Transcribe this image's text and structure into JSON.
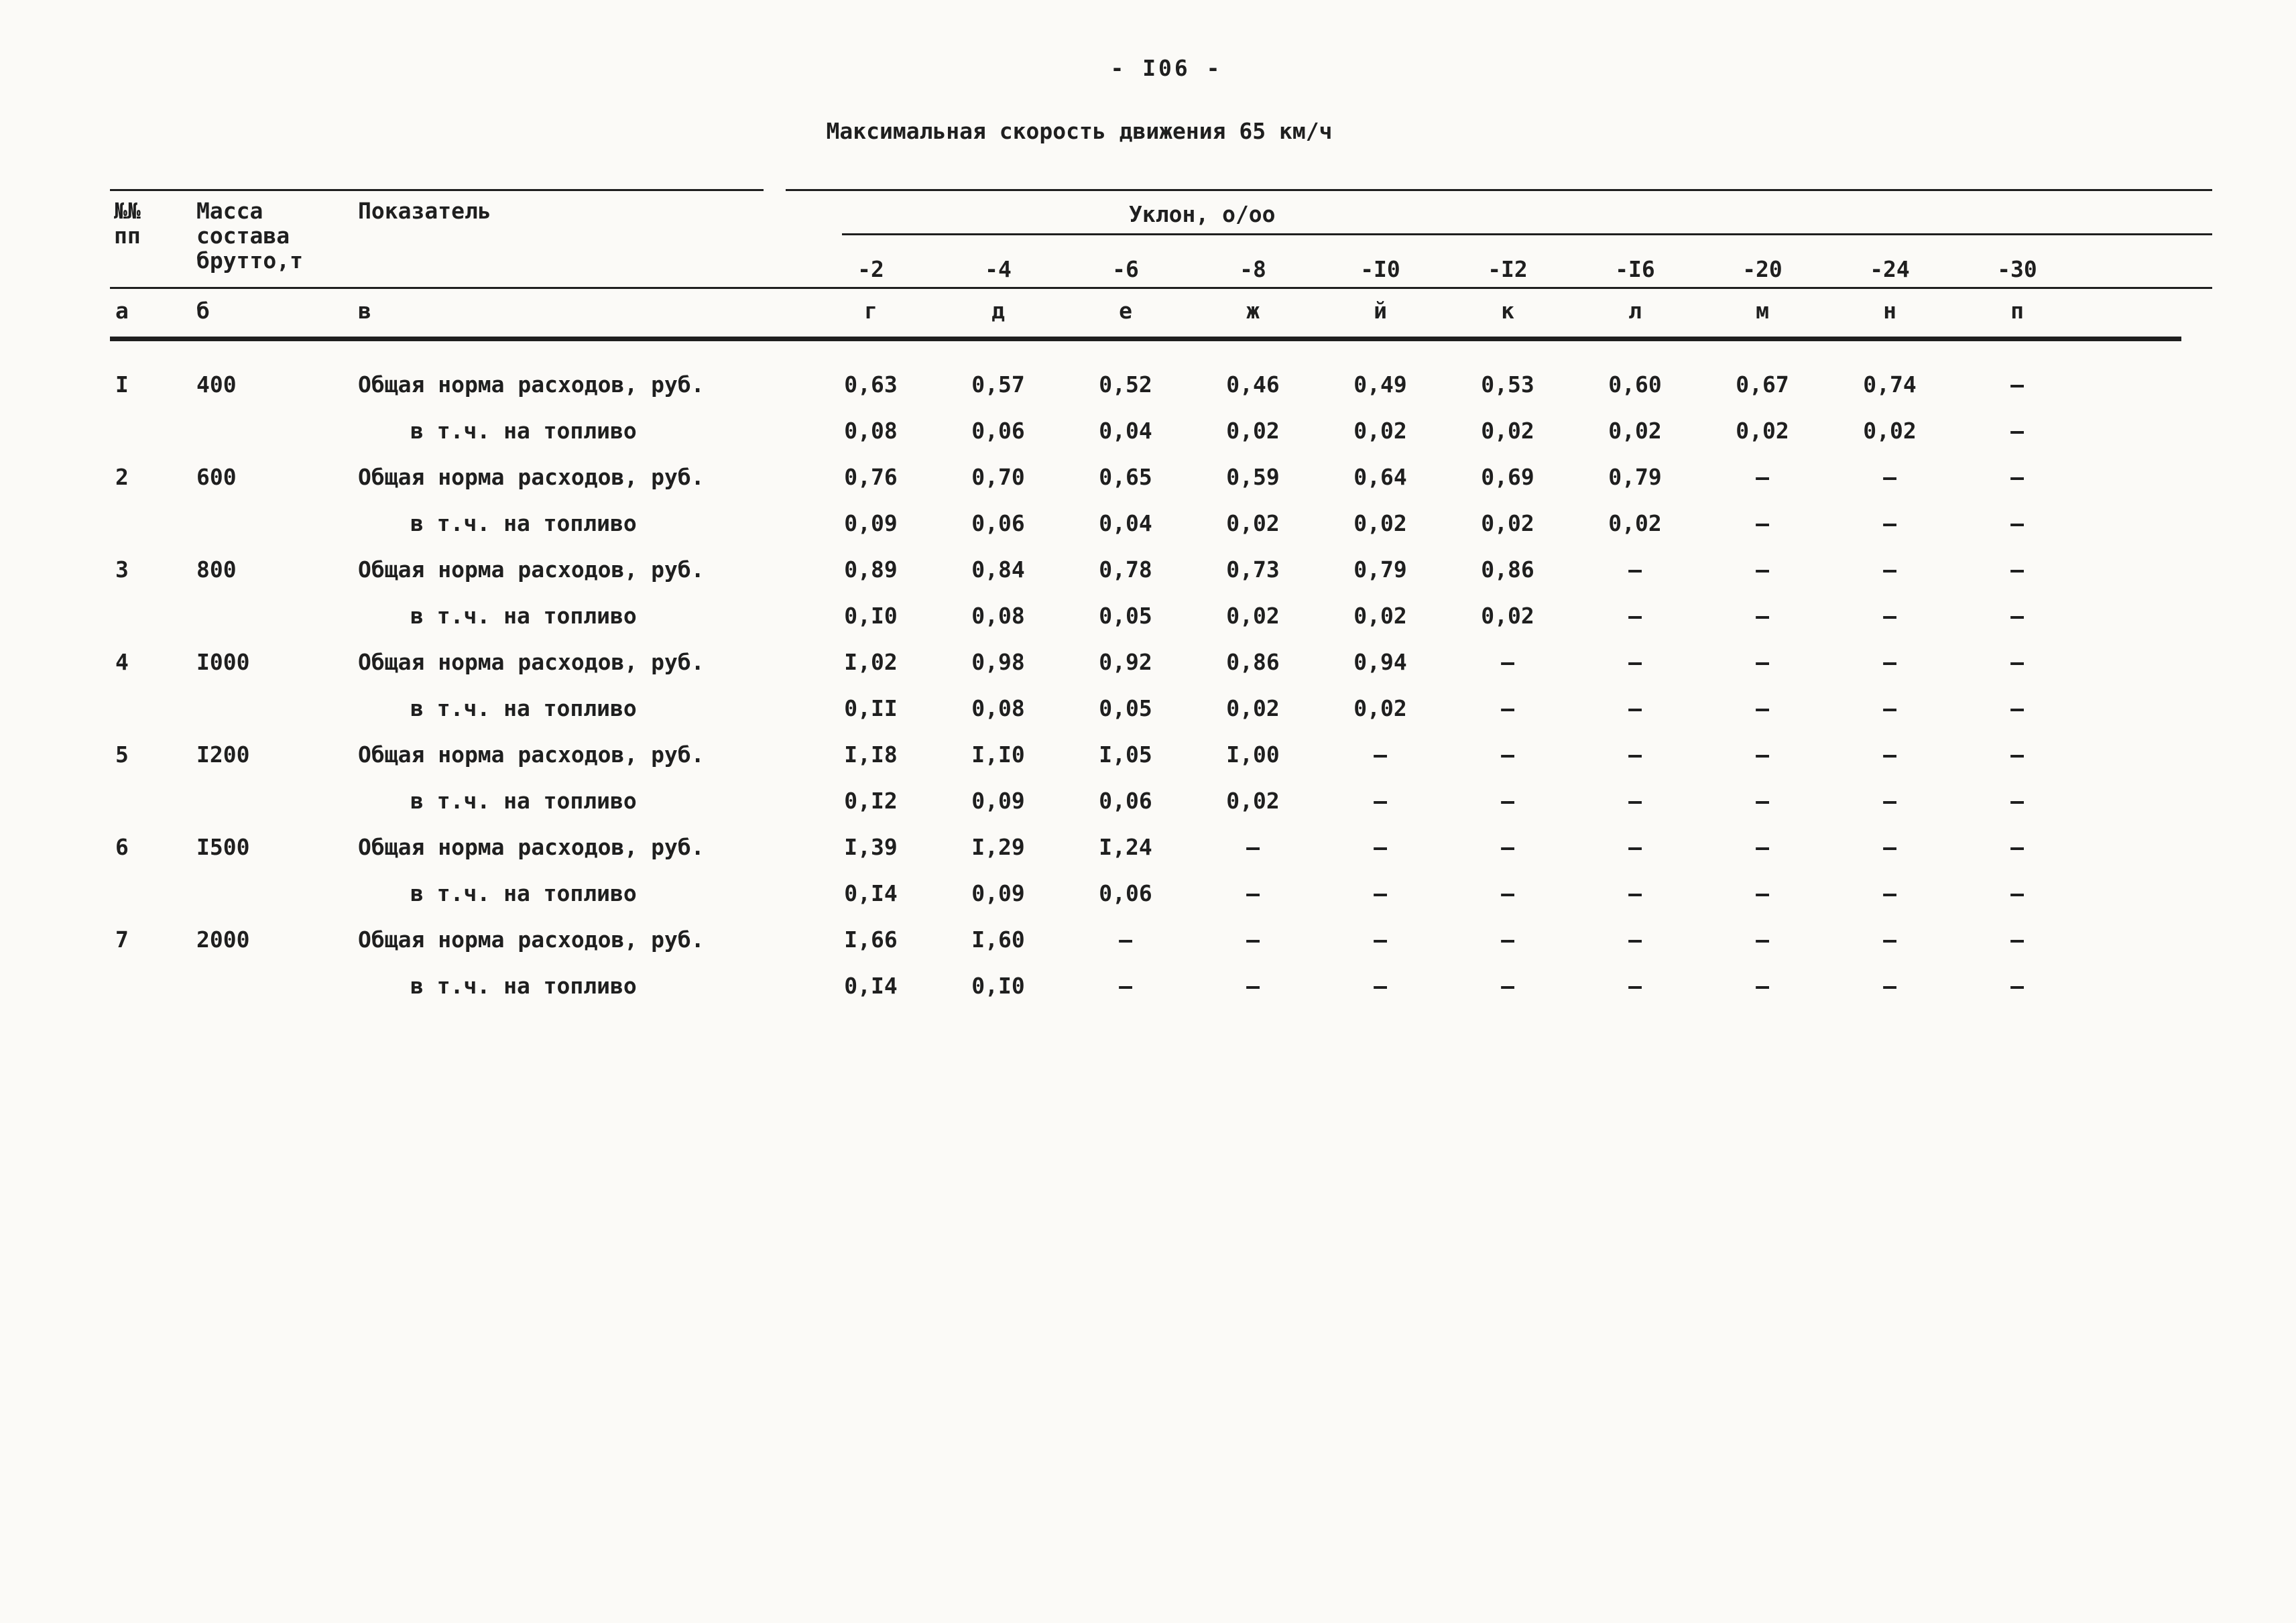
{
  "page": {
    "number": "- I06 -",
    "title": "Максимальная скорость движения 65 км/ч"
  },
  "table": {
    "header": {
      "num": "№№\nпп",
      "mass": "Масса\nсостава\nбрутто,т",
      "indicator": "Показатель",
      "slope_group": "Уклон, о/оо",
      "slope_values": [
        "-2",
        "-4",
        "-6",
        "-8",
        "-I0",
        "-I2",
        "-I6",
        "-20",
        "-24",
        "-30"
      ],
      "letter_row": [
        "а",
        "б",
        "в",
        "г",
        "д",
        "е",
        "ж",
        "й",
        "к",
        "л",
        "м",
        "н",
        "п"
      ]
    },
    "rows": [
      {
        "num": "I",
        "mass": "400",
        "indicator": "Общая норма расходов, руб.",
        "indent": false,
        "values": [
          "0,63",
          "0,57",
          "0,52",
          "0,46",
          "0,49",
          "0,53",
          "0,60",
          "0,67",
          "0,74",
          "–"
        ]
      },
      {
        "num": "",
        "mass": "",
        "indicator": "в т.ч. на топливо",
        "indent": true,
        "values": [
          "0,08",
          "0,06",
          "0,04",
          "0,02",
          "0,02",
          "0,02",
          "0,02",
          "0,02",
          "0,02",
          "–"
        ]
      },
      {
        "num": "2",
        "mass": "600",
        "indicator": "Общая норма расходов, руб.",
        "indent": false,
        "values": [
          "0,76",
          "0,70",
          "0,65",
          "0,59",
          "0,64",
          "0,69",
          "0,79",
          "–",
          "–",
          "–"
        ]
      },
      {
        "num": "",
        "mass": "",
        "indicator": "в т.ч. на топливо",
        "indent": true,
        "values": [
          "0,09",
          "0,06",
          "0,04",
          "0,02",
          "0,02",
          "0,02",
          "0,02",
          "–",
          "–",
          "–"
        ]
      },
      {
        "num": "3",
        "mass": "800",
        "indicator": "Общая норма расходов, руб.",
        "indent": false,
        "values": [
          "0,89",
          "0,84",
          "0,78",
          "0,73",
          "0,79",
          "0,86",
          "–",
          "–",
          "–",
          "–"
        ]
      },
      {
        "num": "",
        "mass": "",
        "indicator": "в т.ч. на топливо",
        "indent": true,
        "values": [
          "0,I0",
          "0,08",
          "0,05",
          "0,02",
          "0,02",
          "0,02",
          "–",
          "–",
          "–",
          "–"
        ]
      },
      {
        "num": "4",
        "mass": "I000",
        "indicator": "Общая норма расходов, руб.",
        "indent": false,
        "values": [
          "I,02",
          "0,98",
          "0,92",
          "0,86",
          "0,94",
          "–",
          "–",
          "–",
          "–",
          "–"
        ]
      },
      {
        "num": "",
        "mass": "",
        "indicator": "в т.ч. на топливо",
        "indent": true,
        "values": [
          "0,II",
          "0,08",
          "0,05",
          "0,02",
          "0,02",
          "–",
          "–",
          "–",
          "–",
          "–"
        ]
      },
      {
        "num": "5",
        "mass": "I200",
        "indicator": "Общая норма расходов, руб.",
        "indent": false,
        "values": [
          "I,I8",
          "I,I0",
          "I,05",
          "I,00",
          "–",
          "–",
          "–",
          "–",
          "–",
          "–"
        ]
      },
      {
        "num": "",
        "mass": "",
        "indicator": "в т.ч. на топливо",
        "indent": true,
        "values": [
          "0,I2",
          "0,09",
          "0,06",
          "0,02",
          "–",
          "–",
          "–",
          "–",
          "–",
          "–"
        ]
      },
      {
        "num": "6",
        "mass": "I500",
        "indicator": "Общая норма расходов, руб.",
        "indent": false,
        "values": [
          "I,39",
          "I,29",
          "I,24",
          "–",
          "–",
          "–",
          "–",
          "–",
          "–",
          "–"
        ]
      },
      {
        "num": "",
        "mass": "",
        "indicator": "в т.ч. на топливо",
        "indent": true,
        "values": [
          "0,I4",
          "0,09",
          "0,06",
          "–",
          "–",
          "–",
          "–",
          "–",
          "–",
          "–"
        ]
      },
      {
        "num": "7",
        "mass": "2000",
        "indicator": "Общая норма расходов, руб.",
        "indent": false,
        "values": [
          "I,66",
          "I,60",
          "–",
          "–",
          "–",
          "–",
          "–",
          "–",
          "–",
          "–"
        ]
      },
      {
        "num": "",
        "mass": "",
        "indicator": "в т.ч. на топливо",
        "indent": true,
        "values": [
          "0,I4",
          "0,I0",
          "–",
          "–",
          "–",
          "–",
          "–",
          "–",
          "–",
          "–"
        ]
      }
    ]
  }
}
